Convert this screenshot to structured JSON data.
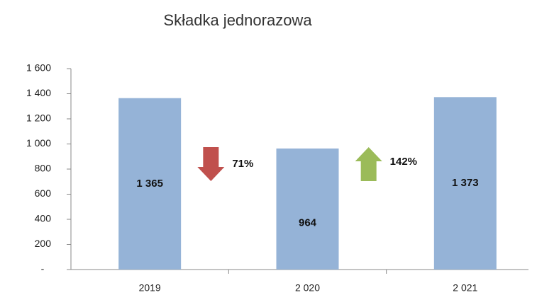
{
  "chart_data": {
    "type": "bar",
    "title": "Składka jednorazowa",
    "categories": [
      "2019",
      "2 020",
      "2 021"
    ],
    "values": [
      1365,
      964,
      1373
    ],
    "value_labels": [
      "1 365",
      "964",
      "1 373"
    ],
    "color": "#95b3d7",
    "ylim": [
      0,
      1600
    ],
    "yticks": [
      {
        "value": 0,
        "label": "-"
      },
      200,
      400,
      600,
      800,
      {
        "value": 1000,
        "label": "1 000"
      },
      {
        "value": 1200,
        "label": "1 200"
      },
      {
        "value": 1400,
        "label": "1 400"
      },
      {
        "value": 1600,
        "label": "1 600"
      }
    ],
    "grid": false,
    "annotations": [
      {
        "text": "71%",
        "direction": "down",
        "color": "#c0504d"
      },
      {
        "text": "142%",
        "direction": "up",
        "color": "#9bbb59"
      }
    ]
  }
}
